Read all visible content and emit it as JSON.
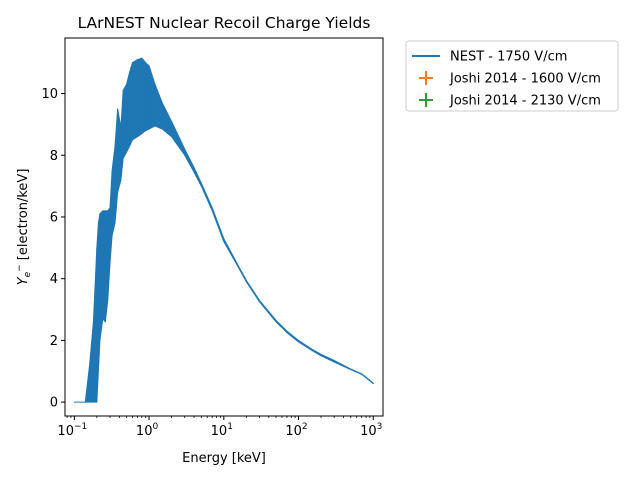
{
  "chart_data": {
    "type": "line",
    "title": "LArNEST Nuclear Recoil Charge Yields",
    "xlabel": "Energy [keV]",
    "ylabel_main": "Y",
    "ylabel_sub": "e",
    "ylabel_sup": "−",
    "ylabel_unit": "  [electron/keV]",
    "xscale": "log",
    "xlim": [
      0.075,
      1350
    ],
    "ylim": [
      -0.45,
      11.8
    ],
    "x_ticks": [
      {
        "value": 0.1,
        "base": "10",
        "exp": "−1"
      },
      {
        "value": 1,
        "base": "10",
        "exp": "0"
      },
      {
        "value": 10,
        "base": "10",
        "exp": "1"
      },
      {
        "value": 100,
        "base": "10",
        "exp": "2"
      },
      {
        "value": 1000,
        "base": "10",
        "exp": "3"
      }
    ],
    "y_ticks": [
      0,
      2,
      4,
      6,
      8,
      10
    ],
    "legend_position": "outside-right",
    "series": [
      {
        "name": "NEST - 1750 V/cm",
        "color": "#1f77b4",
        "style": "band",
        "x": [
          0.1,
          0.14,
          0.16,
          0.18,
          0.2,
          0.21,
          0.22,
          0.24,
          0.26,
          0.28,
          0.3,
          0.32,
          0.35,
          0.38,
          0.42,
          0.45,
          0.5,
          0.55,
          0.6,
          0.7,
          0.8,
          0.9,
          1.0,
          1.2,
          1.5,
          2.0,
          3.0,
          4.0,
          5.0,
          7.0,
          10,
          15,
          20,
          30,
          50,
          70,
          100,
          150,
          200,
          300,
          500,
          700,
          1000
        ],
        "upper": [
          0.0,
          0.0,
          1.2,
          2.6,
          5.0,
          5.8,
          6.1,
          6.2,
          6.2,
          6.2,
          6.3,
          7.5,
          8.3,
          9.5,
          8.9,
          10.1,
          10.3,
          10.7,
          11.0,
          11.1,
          11.15,
          11.0,
          10.9,
          10.3,
          9.7,
          9.1,
          8.2,
          7.6,
          7.1,
          6.3,
          5.3,
          4.5,
          3.95,
          3.3,
          2.65,
          2.3,
          2.0,
          1.72,
          1.55,
          1.35,
          1.07,
          0.92,
          0.62
        ],
        "lower": [
          0.0,
          0.0,
          0.0,
          0.0,
          0.0,
          1.0,
          2.0,
          2.7,
          2.6,
          3.3,
          4.5,
          5.4,
          5.8,
          6.8,
          7.2,
          7.9,
          8.1,
          8.3,
          8.5,
          8.6,
          8.7,
          8.8,
          8.85,
          8.95,
          8.85,
          8.6,
          8.0,
          7.45,
          7.0,
          6.2,
          5.2,
          4.45,
          3.9,
          3.25,
          2.6,
          2.25,
          1.95,
          1.68,
          1.5,
          1.3,
          1.05,
          0.9,
          0.6
        ]
      },
      {
        "name": "Joshi 2014 - 1600 V/cm",
        "color": "#ff7f0e",
        "style": "errorbar",
        "points": []
      },
      {
        "name": "Joshi 2014 - 2130 V/cm",
        "color": "#2ca02c",
        "style": "errorbar",
        "points": []
      }
    ]
  }
}
